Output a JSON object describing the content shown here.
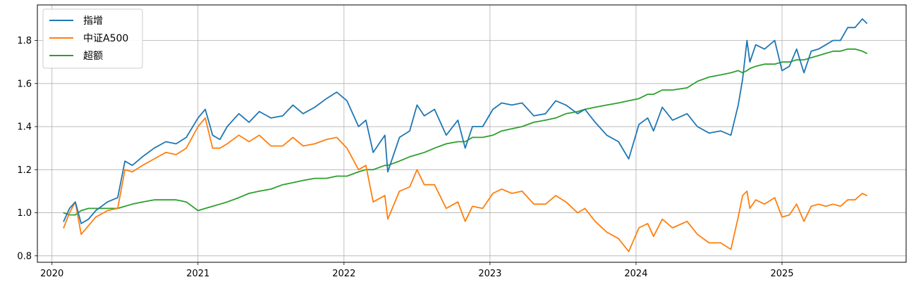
{
  "chart_data": {
    "type": "line",
    "title": "",
    "xlabel": "",
    "ylabel": "",
    "grid": true,
    "legend_position": "top-left",
    "xlim": [
      2019.9,
      2025.85
    ],
    "ylim": [
      0.77,
      1.965
    ],
    "x_ticks": [
      2020,
      2021,
      2022,
      2023,
      2024,
      2025
    ],
    "x_tick_labels": [
      "2020",
      "2021",
      "2022",
      "2023",
      "2024",
      "2025"
    ],
    "y_ticks": [
      0.8,
      1.0,
      1.2,
      1.4,
      1.6,
      1.8
    ],
    "y_tick_labels": [
      "0.8",
      "1.0",
      "1.2",
      "1.4",
      "1.6",
      "1.8"
    ],
    "series": [
      {
        "name": "指增",
        "color": "#1f77b4",
        "x": [
          2020.08,
          2020.12,
          2020.16,
          2020.2,
          2020.25,
          2020.3,
          2020.38,
          2020.45,
          2020.5,
          2020.55,
          2020.62,
          2020.7,
          2020.78,
          2020.85,
          2020.92,
          2021.0,
          2021.05,
          2021.1,
          2021.15,
          2021.2,
          2021.28,
          2021.35,
          2021.42,
          2021.5,
          2021.58,
          2021.65,
          2021.72,
          2021.8,
          2021.88,
          2021.95,
          2022.02,
          2022.1,
          2022.15,
          2022.2,
          2022.28,
          2022.3,
          2022.38,
          2022.45,
          2022.5,
          2022.55,
          2022.62,
          2022.7,
          2022.78,
          2022.83,
          2022.88,
          2022.95,
          2023.02,
          2023.08,
          2023.15,
          2023.22,
          2023.3,
          2023.38,
          2023.45,
          2023.52,
          2023.6,
          2023.65,
          2023.72,
          2023.8,
          2023.88,
          2023.95,
          2024.02,
          2024.08,
          2024.12,
          2024.18,
          2024.25,
          2024.35,
          2024.42,
          2024.5,
          2024.58,
          2024.65,
          2024.7,
          2024.73,
          2024.76,
          2024.78,
          2024.82,
          2024.88,
          2024.95,
          2025.0,
          2025.05,
          2025.1,
          2025.15,
          2025.2,
          2025.25,
          2025.3,
          2025.35,
          2025.4,
          2025.45,
          2025.5,
          2025.55,
          2025.58
        ],
        "y": [
          0.96,
          1.02,
          1.05,
          0.95,
          0.97,
          1.01,
          1.05,
          1.07,
          1.24,
          1.22,
          1.26,
          1.3,
          1.33,
          1.32,
          1.35,
          1.44,
          1.48,
          1.36,
          1.34,
          1.4,
          1.46,
          1.42,
          1.47,
          1.44,
          1.45,
          1.5,
          1.46,
          1.49,
          1.53,
          1.56,
          1.52,
          1.4,
          1.43,
          1.28,
          1.36,
          1.19,
          1.35,
          1.38,
          1.5,
          1.45,
          1.48,
          1.36,
          1.43,
          1.3,
          1.4,
          1.4,
          1.48,
          1.51,
          1.5,
          1.51,
          1.45,
          1.46,
          1.52,
          1.5,
          1.46,
          1.48,
          1.42,
          1.36,
          1.33,
          1.25,
          1.41,
          1.44,
          1.38,
          1.49,
          1.43,
          1.46,
          1.4,
          1.37,
          1.38,
          1.36,
          1.5,
          1.62,
          1.8,
          1.7,
          1.78,
          1.76,
          1.8,
          1.66,
          1.68,
          1.76,
          1.65,
          1.75,
          1.76,
          1.78,
          1.8,
          1.8,
          1.86,
          1.86,
          1.9,
          1.88
        ]
      },
      {
        "name": "中证A500",
        "color": "#ff7f0e",
        "x": [
          2020.08,
          2020.12,
          2020.16,
          2020.2,
          2020.25,
          2020.3,
          2020.38,
          2020.45,
          2020.5,
          2020.55,
          2020.62,
          2020.7,
          2020.78,
          2020.85,
          2020.92,
          2021.0,
          2021.05,
          2021.1,
          2021.15,
          2021.2,
          2021.28,
          2021.35,
          2021.42,
          2021.5,
          2021.58,
          2021.65,
          2021.72,
          2021.8,
          2021.88,
          2021.95,
          2022.02,
          2022.1,
          2022.15,
          2022.2,
          2022.28,
          2022.3,
          2022.38,
          2022.45,
          2022.5,
          2022.55,
          2022.62,
          2022.7,
          2022.78,
          2022.83,
          2022.88,
          2022.95,
          2023.02,
          2023.08,
          2023.15,
          2023.22,
          2023.3,
          2023.38,
          2023.45,
          2023.52,
          2023.6,
          2023.65,
          2023.72,
          2023.8,
          2023.88,
          2023.95,
          2024.02,
          2024.08,
          2024.12,
          2024.18,
          2024.25,
          2024.35,
          2024.42,
          2024.5,
          2024.58,
          2024.65,
          2024.7,
          2024.73,
          2024.76,
          2024.78,
          2024.82,
          2024.88,
          2024.95,
          2025.0,
          2025.05,
          2025.1,
          2025.15,
          2025.2,
          2025.25,
          2025.3,
          2025.35,
          2025.4,
          2025.45,
          2025.5,
          2025.55,
          2025.58
        ],
        "y": [
          0.93,
          1.0,
          1.05,
          0.9,
          0.94,
          0.98,
          1.01,
          1.02,
          1.2,
          1.19,
          1.22,
          1.25,
          1.28,
          1.27,
          1.3,
          1.4,
          1.44,
          1.3,
          1.3,
          1.32,
          1.36,
          1.33,
          1.36,
          1.31,
          1.31,
          1.35,
          1.31,
          1.32,
          1.34,
          1.35,
          1.3,
          1.2,
          1.22,
          1.05,
          1.08,
          0.97,
          1.1,
          1.12,
          1.2,
          1.13,
          1.13,
          1.02,
          1.05,
          0.96,
          1.03,
          1.02,
          1.09,
          1.11,
          1.09,
          1.1,
          1.04,
          1.04,
          1.08,
          1.05,
          1.0,
          1.02,
          0.96,
          0.91,
          0.88,
          0.82,
          0.93,
          0.95,
          0.89,
          0.97,
          0.93,
          0.96,
          0.9,
          0.86,
          0.86,
          0.83,
          0.98,
          1.08,
          1.1,
          1.02,
          1.06,
          1.04,
          1.07,
          0.98,
          0.99,
          1.04,
          0.96,
          1.03,
          1.04,
          1.03,
          1.04,
          1.03,
          1.06,
          1.06,
          1.09,
          1.08
        ]
      },
      {
        "name": "超额",
        "color": "#2ca02c",
        "x": [
          2020.08,
          2020.12,
          2020.16,
          2020.2,
          2020.25,
          2020.3,
          2020.38,
          2020.45,
          2020.5,
          2020.55,
          2020.62,
          2020.7,
          2020.78,
          2020.85,
          2020.92,
          2021.0,
          2021.05,
          2021.1,
          2021.15,
          2021.2,
          2021.28,
          2021.35,
          2021.42,
          2021.5,
          2021.58,
          2021.65,
          2021.72,
          2021.8,
          2021.88,
          2021.95,
          2022.02,
          2022.1,
          2022.15,
          2022.2,
          2022.28,
          2022.3,
          2022.38,
          2022.45,
          2022.5,
          2022.55,
          2022.62,
          2022.7,
          2022.78,
          2022.83,
          2022.88,
          2022.95,
          2023.02,
          2023.08,
          2023.15,
          2023.22,
          2023.3,
          2023.38,
          2023.45,
          2023.52,
          2023.6,
          2023.65,
          2023.72,
          2023.8,
          2023.88,
          2023.95,
          2024.02,
          2024.08,
          2024.12,
          2024.18,
          2024.25,
          2024.35,
          2024.42,
          2024.5,
          2024.58,
          2024.65,
          2024.7,
          2024.73,
          2024.76,
          2024.78,
          2024.82,
          2024.88,
          2024.95,
          2025.0,
          2025.05,
          2025.1,
          2025.15,
          2025.2,
          2025.25,
          2025.3,
          2025.35,
          2025.4,
          2025.45,
          2025.5,
          2025.55,
          2025.58
        ],
        "y": [
          1.0,
          0.99,
          0.99,
          1.01,
          1.02,
          1.02,
          1.02,
          1.02,
          1.03,
          1.04,
          1.05,
          1.06,
          1.06,
          1.06,
          1.05,
          1.01,
          1.02,
          1.03,
          1.04,
          1.05,
          1.07,
          1.09,
          1.1,
          1.11,
          1.13,
          1.14,
          1.15,
          1.16,
          1.16,
          1.17,
          1.17,
          1.19,
          1.2,
          1.2,
          1.22,
          1.22,
          1.24,
          1.26,
          1.27,
          1.28,
          1.3,
          1.32,
          1.33,
          1.33,
          1.35,
          1.35,
          1.36,
          1.38,
          1.39,
          1.4,
          1.42,
          1.43,
          1.44,
          1.46,
          1.47,
          1.48,
          1.49,
          1.5,
          1.51,
          1.52,
          1.53,
          1.55,
          1.55,
          1.57,
          1.57,
          1.58,
          1.61,
          1.63,
          1.64,
          1.65,
          1.66,
          1.65,
          1.66,
          1.67,
          1.68,
          1.69,
          1.69,
          1.7,
          1.7,
          1.71,
          1.71,
          1.72,
          1.73,
          1.74,
          1.75,
          1.75,
          1.76,
          1.76,
          1.75,
          1.74
        ]
      }
    ]
  }
}
